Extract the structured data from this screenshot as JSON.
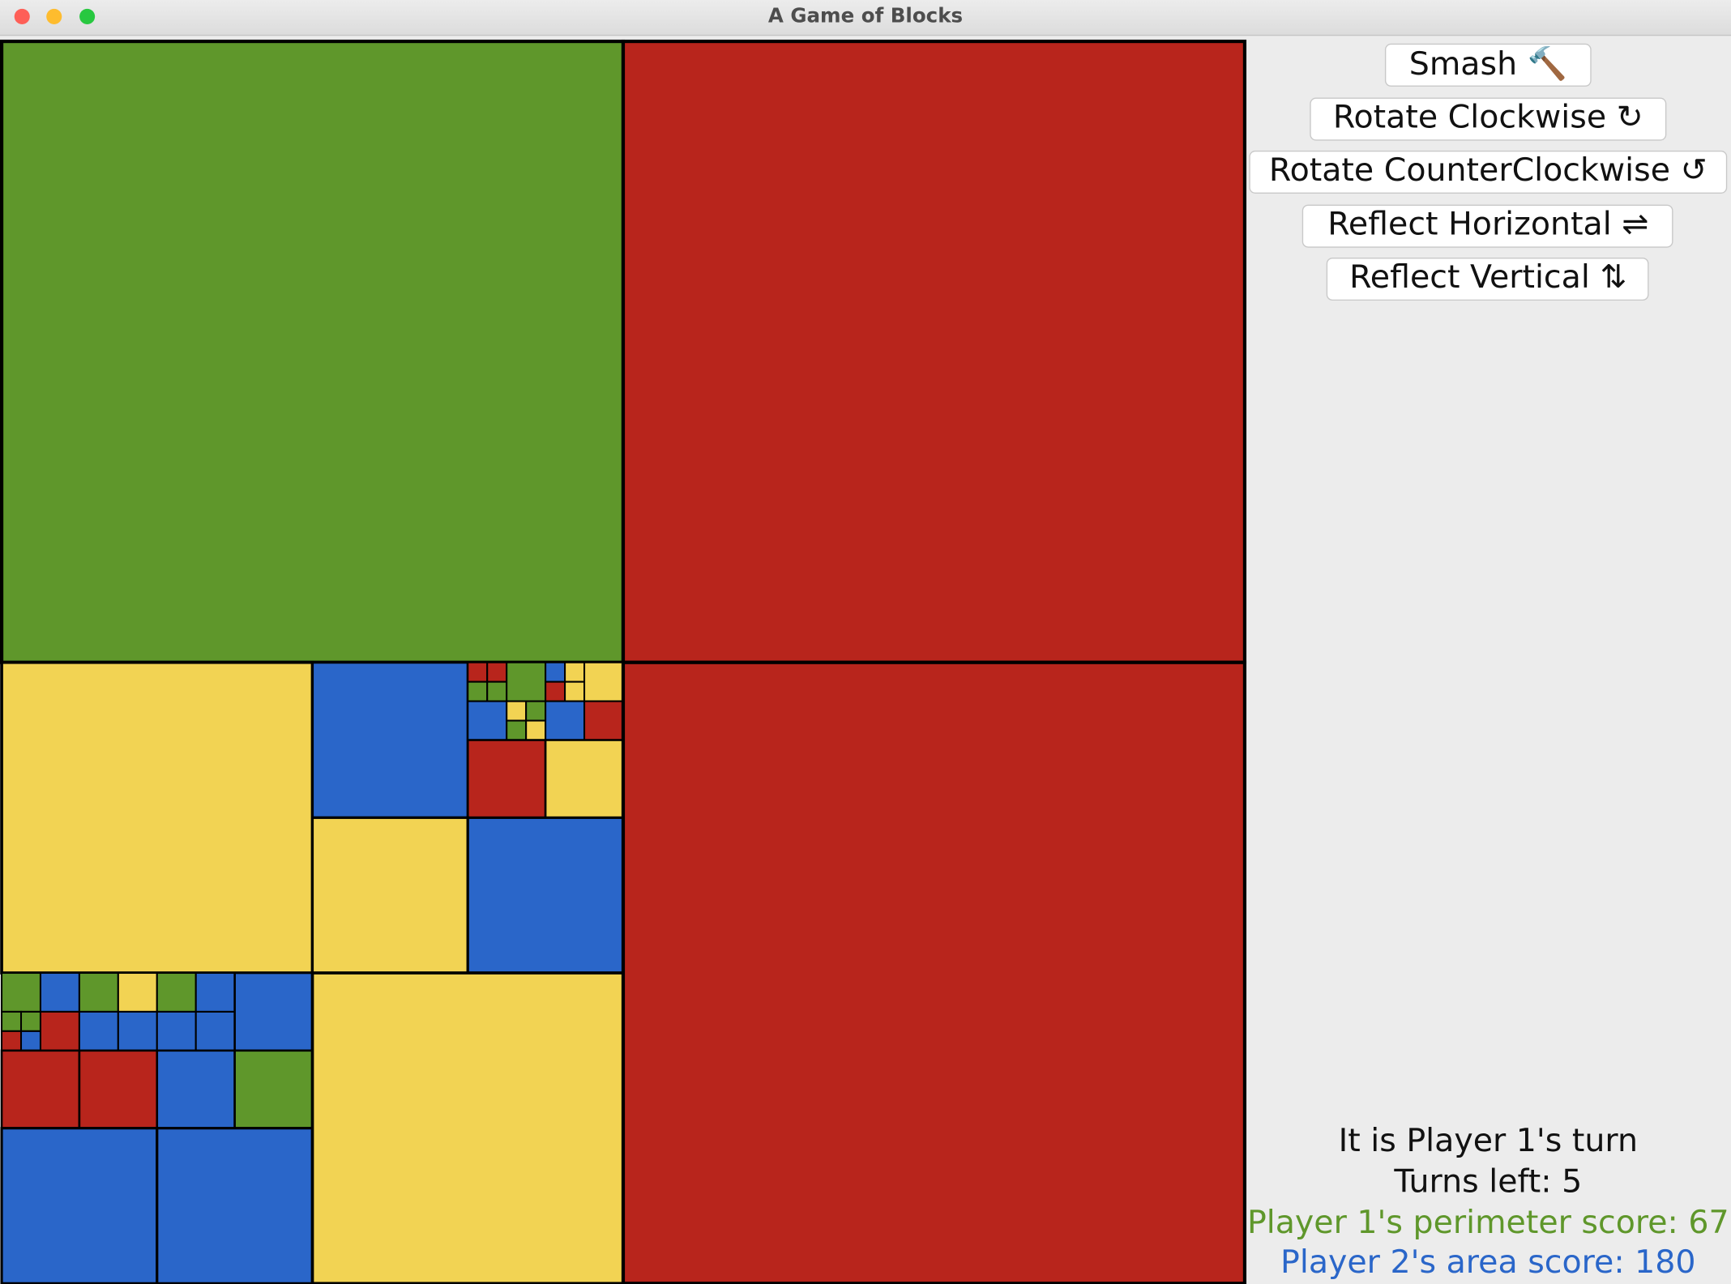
{
  "window": {
    "title": "A Game of Blocks"
  },
  "buttons": [
    {
      "label": "Smash 🔨"
    },
    {
      "label": "Rotate Clockwise ↻"
    },
    {
      "label": "Rotate CounterClockwise ↺"
    },
    {
      "label": "Reflect Horizontal ⇌"
    },
    {
      "label": "Reflect Vertical ⇅"
    }
  ],
  "status": {
    "turn": "It is Player 1's turn",
    "turns_left": "Turns left: 5",
    "player1_score": "Player 1's perimeter  score: 67",
    "player2_score": "Player 2's area score: 180"
  }
}
